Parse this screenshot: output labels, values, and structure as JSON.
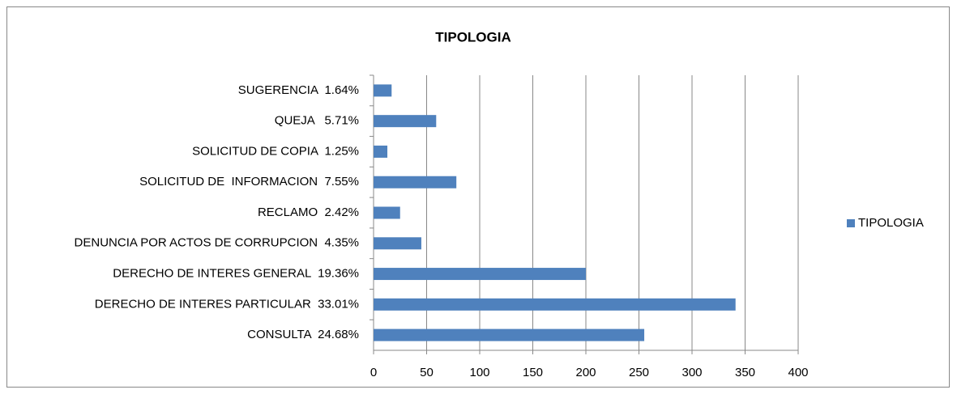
{
  "chart_data": {
    "type": "barh",
    "title": "TIPOLOGIA",
    "categories": [
      "SUGERENCIA  1.64%",
      "QUEJA   5.71%",
      "SOLICITUD DE COPIA  1.25%",
      "SOLICITUD DE  INFORMACION  7.55%",
      "RECLAMO  2.42%",
      "DENUNCIA POR ACTOS DE CORRUPCION  4.35%",
      "DERECHO DE INTERES GENERAL  19.36%",
      "DERECHO DE INTERES PARTICULAR  33.01%",
      "CONSULTA  24.68%"
    ],
    "series": [
      {
        "name": "TIPOLOGIA",
        "color": "#4f81bd",
        "values": [
          17,
          59,
          13,
          78,
          25,
          45,
          200,
          341,
          255
        ]
      }
    ],
    "xlim": [
      0,
      400
    ],
    "xticks": [
      0,
      50,
      100,
      150,
      200,
      250,
      300,
      350,
      400
    ],
    "grid": true,
    "legend": "right"
  }
}
